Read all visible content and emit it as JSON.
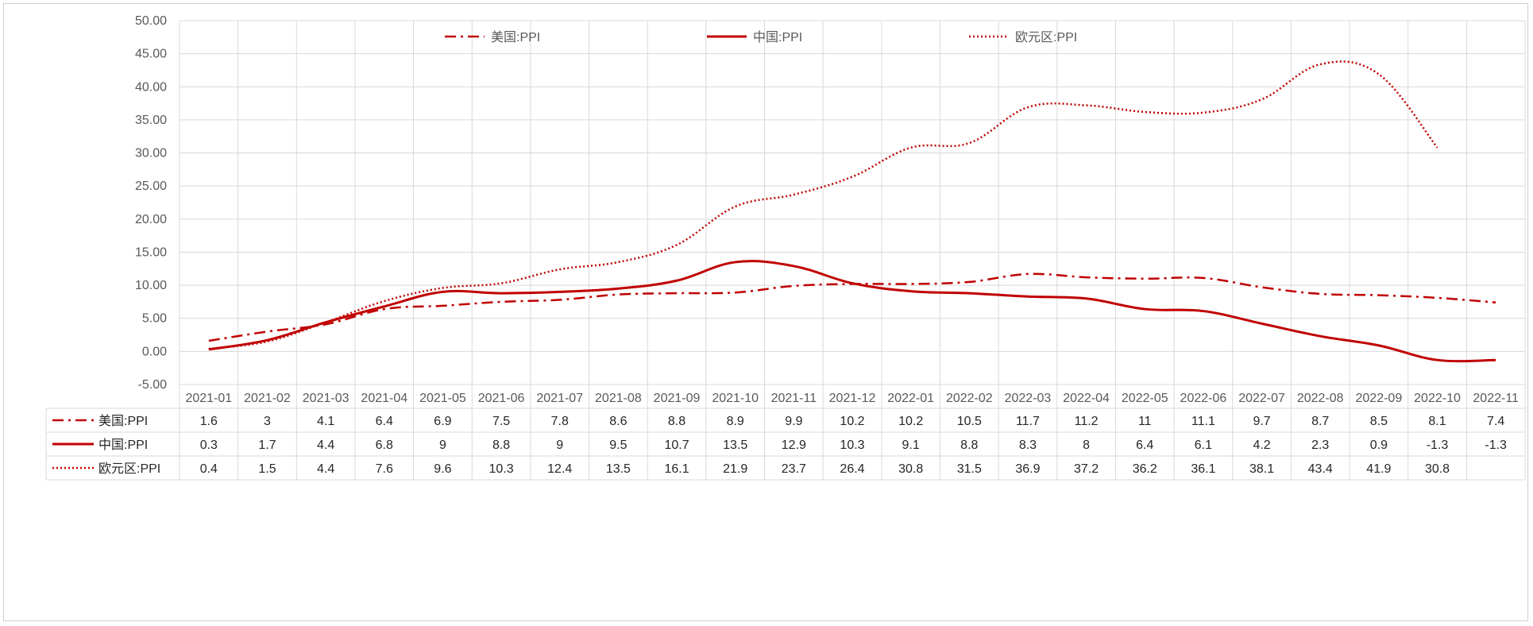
{
  "chart_data": {
    "type": "line",
    "title": "",
    "xlabel": "",
    "ylabel": "",
    "ylim": [
      -5,
      50
    ],
    "y_ticks": [
      "50.00",
      "45.00",
      "40.00",
      "35.00",
      "30.00",
      "25.00",
      "20.00",
      "15.00",
      "10.00",
      "5.00",
      "0.00",
      "-5.00"
    ],
    "grid": true,
    "legend_position": "top",
    "categories": [
      "2021-01",
      "2021-02",
      "2021-03",
      "2021-04",
      "2021-05",
      "2021-06",
      "2021-07",
      "2021-08",
      "2021-09",
      "2021-10",
      "2021-11",
      "2021-12",
      "2022-01",
      "2022-02",
      "2022-03",
      "2022-04",
      "2022-05",
      "2022-06",
      "2022-07",
      "2022-08",
      "2022-09",
      "2022-10",
      "2022-11"
    ],
    "series": [
      {
        "name": "美国:PPI",
        "color": "#c00000",
        "style": "dash-dot",
        "values": [
          1.6,
          3,
          4.1,
          6.4,
          6.9,
          7.5,
          7.8,
          8.6,
          8.8,
          8.9,
          9.9,
          10.2,
          10.2,
          10.5,
          11.7,
          11.2,
          11,
          11.1,
          9.7,
          8.7,
          8.5,
          8.1,
          7.4
        ]
      },
      {
        "name": "中国:PPI",
        "color": "#c00000",
        "style": "solid",
        "values": [
          0.3,
          1.7,
          4.4,
          6.8,
          9,
          8.8,
          9,
          9.5,
          10.7,
          13.5,
          12.9,
          10.3,
          9.1,
          8.8,
          8.3,
          8,
          6.4,
          6.1,
          4.2,
          2.3,
          0.9,
          -1.3,
          -1.3
        ]
      },
      {
        "name": "欧元区:PPI",
        "color": "#c00000",
        "style": "dotted",
        "values": [
          0.4,
          1.5,
          4.4,
          7.6,
          9.6,
          10.3,
          12.4,
          13.5,
          16.1,
          21.9,
          23.7,
          26.4,
          30.8,
          31.5,
          36.9,
          37.2,
          36.2,
          36.1,
          38.1,
          43.4,
          41.9,
          30.8,
          null
        ]
      }
    ]
  },
  "table": {
    "rows": [
      {
        "label": "美国:PPI",
        "cells": [
          "1.6",
          "3",
          "4.1",
          "6.4",
          "6.9",
          "7.5",
          "7.8",
          "8.6",
          "8.8",
          "8.9",
          "9.9",
          "10.2",
          "10.2",
          "10.5",
          "11.7",
          "11.2",
          "11",
          "11.1",
          "9.7",
          "8.7",
          "8.5",
          "8.1",
          "7.4"
        ]
      },
      {
        "label": "中国:PPI",
        "cells": [
          "0.3",
          "1.7",
          "4.4",
          "6.8",
          "9",
          "8.8",
          "9",
          "9.5",
          "10.7",
          "13.5",
          "12.9",
          "10.3",
          "9.1",
          "8.8",
          "8.3",
          "8",
          "6.4",
          "6.1",
          "4.2",
          "2.3",
          "0.9",
          "-1.3",
          "-1.3"
        ]
      },
      {
        "label": "欧元区:PPI",
        "cells": [
          "0.4",
          "1.5",
          "4.4",
          "7.6",
          "9.6",
          "10.3",
          "12.4",
          "13.5",
          "16.1",
          "21.9",
          "23.7",
          "26.4",
          "30.8",
          "31.5",
          "36.9",
          "37.2",
          "36.2",
          "36.1",
          "38.1",
          "43.4",
          "41.9",
          "30.8",
          ""
        ]
      }
    ]
  }
}
